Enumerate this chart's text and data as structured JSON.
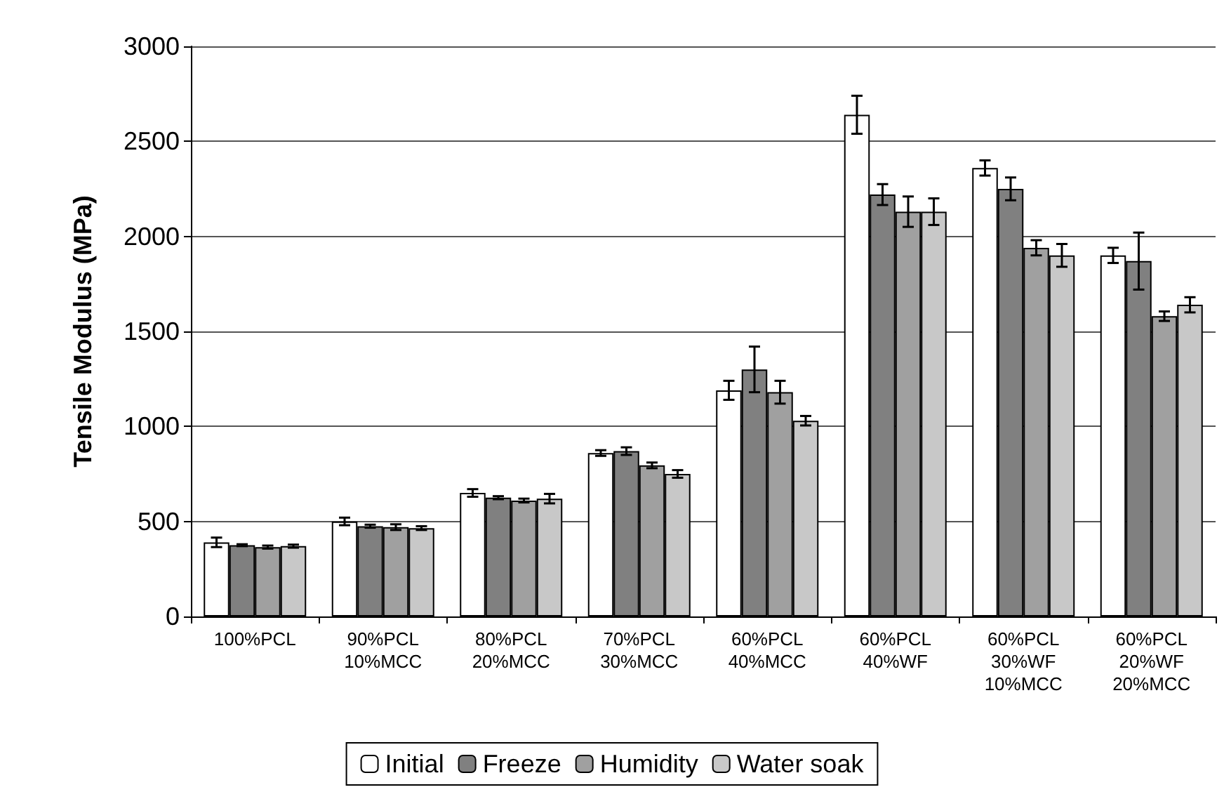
{
  "chart_data": {
    "type": "bar",
    "ylabel": "Tensile Modulus (MPa)",
    "categories": [
      "100%PCL",
      "90%PCL\n10%MCC",
      "80%PCL\n20%MCC",
      "70%PCL\n30%MCC",
      "60%PCL\n40%MCC",
      "60%PCL\n40%WF",
      "60%PCL\n30%WF\n10%MCC",
      "60%PCL\n20%WF\n20%MCC"
    ],
    "series": [
      {
        "name": "Initial",
        "color": "#ffffff",
        "values": [
          390,
          500,
          650,
          860,
          1190,
          2640,
          2360,
          1900
        ],
        "errors": [
          25,
          20,
          20,
          15,
          50,
          100,
          40,
          40
        ]
      },
      {
        "name": "Freeze",
        "color": "#808080",
        "values": [
          375,
          475,
          625,
          870,
          1300,
          2220,
          2250,
          1870
        ],
        "errors": [
          5,
          8,
          8,
          20,
          120,
          55,
          60,
          150
        ]
      },
      {
        "name": "Humidity",
        "color": "#a0a0a0",
        "values": [
          365,
          470,
          610,
          795,
          1180,
          2130,
          1940,
          1580
        ],
        "errors": [
          8,
          15,
          10,
          15,
          60,
          80,
          40,
          25
        ]
      },
      {
        "name": "Water soak",
        "color": "#c8c8c8",
        "values": [
          370,
          465,
          620,
          750,
          1030,
          2130,
          1900,
          1640
        ],
        "errors": [
          8,
          10,
          25,
          20,
          25,
          70,
          60,
          40
        ]
      }
    ],
    "ylim": [
      0,
      3000
    ],
    "yticks": [
      0,
      500,
      1000,
      1500,
      2000,
      2500,
      3000
    ],
    "grid": "y",
    "legend": "bottom"
  }
}
